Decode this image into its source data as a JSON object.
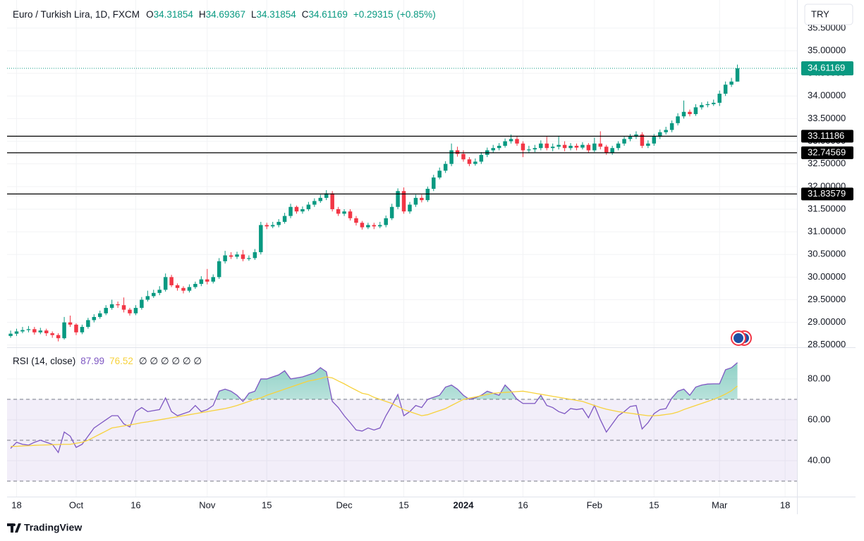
{
  "legend": {
    "title": "Euro / Turkish Lira, 1D, FXCM",
    "labels": [
      "O",
      "H",
      "L",
      "C"
    ],
    "change": "+0.29315",
    "change_pct": "(+0.85%)"
  },
  "currency": "TRY",
  "brand": "TradingView",
  "chart_data": [
    {
      "type": "candlestick",
      "up_color": "#089981",
      "down_color": "#f23645",
      "grid": true,
      "xlim": [
        -0.6,
        132
      ],
      "xticks": [
        {
          "value": 1,
          "label": "18"
        },
        {
          "value": 11,
          "label": "Oct"
        },
        {
          "value": 21,
          "label": "16"
        },
        {
          "value": 33,
          "label": "Nov"
        },
        {
          "value": 43,
          "label": "15"
        },
        {
          "value": 56,
          "label": "Dec"
        },
        {
          "value": 66,
          "label": "15"
        },
        {
          "value": 76,
          "label": "2024"
        },
        {
          "value": 86,
          "label": "16"
        },
        {
          "value": 98,
          "label": "Feb"
        },
        {
          "value": 108,
          "label": "15"
        },
        {
          "value": 119,
          "label": "Mar"
        },
        {
          "value": 130,
          "label": "18"
        }
      ],
      "ylim": [
        28.45,
        36.12
      ],
      "yticks": [
        {
          "value": 28.5,
          "label": "28.50000"
        },
        {
          "value": 29,
          "label": "29.00000"
        },
        {
          "value": 29.5,
          "label": "29.50000"
        },
        {
          "value": 30,
          "label": "30.00000"
        },
        {
          "value": 30.5,
          "label": "30.50000"
        },
        {
          "value": 31,
          "label": "31.00000"
        },
        {
          "value": 31.5,
          "label": "31.50000"
        },
        {
          "value": 32,
          "label": "32.00000"
        },
        {
          "value": 32.5,
          "label": "32.50000"
        },
        {
          "value": 33,
          "label": "33.00000"
        },
        {
          "value": 33.5,
          "label": "33.50000"
        },
        {
          "value": 34,
          "label": "34.00000"
        },
        {
          "value": 34.5,
          "label": "34.50000"
        },
        {
          "value": 35,
          "label": "35.00000"
        },
        {
          "value": 35.5,
          "label": "35.50000"
        }
      ],
      "hlines": [
        33.11186,
        32.74569,
        31.83579
      ],
      "open": [
        28.7,
        28.75,
        28.8,
        28.83,
        28.85,
        28.78,
        28.82,
        28.76,
        28.72,
        28.65,
        29.0,
        28.95,
        28.78,
        28.9,
        29.05,
        29.12,
        29.2,
        29.32,
        29.4,
        29.38,
        29.28,
        29.2,
        29.32,
        29.5,
        29.58,
        29.65,
        29.72,
        30.0,
        29.82,
        29.76,
        29.7,
        29.78,
        29.85,
        29.95,
        29.9,
        30.0,
        30.35,
        30.48,
        30.45,
        30.5,
        30.4,
        30.42,
        30.55,
        31.15,
        31.12,
        31.15,
        31.22,
        31.35,
        31.55,
        31.45,
        31.5,
        31.6,
        31.68,
        31.75,
        31.85,
        31.5,
        31.4,
        31.45,
        31.3,
        31.2,
        31.1,
        31.15,
        31.12,
        31.15,
        31.3,
        31.55,
        31.9,
        31.45,
        31.6,
        31.75,
        31.7,
        31.95,
        32.2,
        32.35,
        32.5,
        32.8,
        32.72,
        32.6,
        32.5,
        32.55,
        32.7,
        32.8,
        32.85,
        32.9,
        33.0,
        33.05,
        32.95,
        32.8,
        32.82,
        32.85,
        32.95,
        32.85,
        32.88,
        32.92,
        32.85,
        32.9,
        32.86,
        32.92,
        32.8,
        32.95,
        32.88,
        32.75,
        32.85,
        32.95,
        33.05,
        33.1,
        33.15,
        32.9,
        32.95,
        33.1,
        33.2,
        33.25,
        33.4,
        33.55,
        33.65,
        33.6,
        33.75,
        33.8,
        33.82,
        33.85,
        34.05,
        34.25,
        34.31854
      ],
      "high": [
        28.82,
        28.86,
        28.9,
        28.92,
        28.9,
        28.88,
        28.86,
        28.8,
        28.76,
        29.12,
        29.15,
        28.98,
        28.95,
        29.1,
        29.18,
        29.26,
        29.38,
        29.5,
        29.46,
        29.55,
        29.32,
        29.38,
        29.56,
        29.7,
        29.72,
        29.8,
        30.08,
        30.05,
        29.86,
        29.8,
        29.84,
        29.9,
        30.02,
        30.18,
        30.06,
        30.42,
        30.58,
        30.55,
        30.56,
        30.6,
        30.48,
        30.62,
        31.22,
        31.2,
        31.22,
        31.28,
        31.42,
        31.62,
        31.58,
        31.56,
        31.66,
        31.74,
        31.82,
        31.92,
        31.9,
        31.55,
        31.5,
        31.5,
        31.35,
        31.24,
        31.2,
        31.2,
        31.22,
        31.36,
        31.62,
        31.96,
        31.98,
        31.66,
        31.82,
        31.82,
        32.0,
        32.26,
        32.42,
        32.56,
        32.95,
        32.88,
        32.8,
        32.65,
        32.62,
        32.76,
        32.86,
        32.92,
        32.96,
        33.06,
        33.15,
        33.12,
        33.0,
        32.9,
        32.92,
        33.02,
        33.1,
        32.95,
        33.12,
        33.0,
        32.96,
        32.95,
        32.98,
        32.96,
        33.08,
        33.22,
        32.92,
        32.9,
        33.0,
        33.1,
        33.16,
        33.22,
        33.2,
        33.02,
        33.16,
        33.26,
        33.32,
        33.46,
        33.62,
        33.9,
        33.7,
        33.82,
        33.86,
        33.88,
        33.92,
        34.12,
        34.32,
        34.4,
        34.69367
      ],
      "low": [
        28.66,
        28.7,
        28.76,
        28.78,
        28.73,
        28.74,
        28.7,
        28.66,
        28.58,
        28.62,
        28.9,
        28.72,
        28.74,
        28.86,
        29.0,
        29.08,
        29.16,
        29.28,
        29.32,
        29.22,
        29.15,
        29.16,
        29.28,
        29.46,
        29.54,
        29.6,
        29.68,
        29.78,
        29.7,
        29.64,
        29.66,
        29.74,
        29.8,
        29.84,
        29.86,
        29.96,
        30.3,
        30.4,
        30.4,
        30.35,
        30.36,
        30.38,
        30.5,
        31.06,
        31.08,
        31.1,
        31.18,
        31.3,
        31.4,
        31.4,
        31.46,
        31.55,
        31.64,
        31.7,
        31.45,
        31.35,
        31.35,
        31.25,
        31.14,
        31.05,
        31.06,
        31.06,
        31.08,
        31.1,
        31.26,
        31.5,
        31.4,
        31.4,
        31.55,
        31.65,
        31.66,
        31.9,
        32.16,
        32.3,
        32.45,
        32.66,
        32.55,
        32.45,
        32.46,
        32.5,
        32.65,
        32.75,
        32.8,
        32.86,
        32.95,
        32.9,
        32.65,
        32.74,
        32.76,
        32.8,
        32.8,
        32.78,
        32.82,
        32.78,
        32.8,
        32.8,
        32.82,
        32.75,
        32.76,
        32.82,
        32.7,
        32.7,
        32.8,
        32.9,
        33.0,
        33.05,
        32.85,
        32.85,
        32.9,
        33.05,
        33.15,
        33.2,
        33.35,
        33.5,
        33.55,
        33.56,
        33.7,
        33.75,
        33.78,
        33.78,
        34.0,
        34.2,
        34.31854
      ],
      "close": [
        28.75,
        28.8,
        28.83,
        28.85,
        28.78,
        28.82,
        28.76,
        28.72,
        28.65,
        29.0,
        28.95,
        28.78,
        28.9,
        29.05,
        29.12,
        29.2,
        29.32,
        29.4,
        29.38,
        29.28,
        29.2,
        29.32,
        29.5,
        29.58,
        29.65,
        29.72,
        30.0,
        29.82,
        29.76,
        29.7,
        29.78,
        29.85,
        29.95,
        29.9,
        30.0,
        30.35,
        30.48,
        30.45,
        30.5,
        30.4,
        30.42,
        30.55,
        31.15,
        31.12,
        31.15,
        31.22,
        31.35,
        31.55,
        31.45,
        31.5,
        31.6,
        31.68,
        31.75,
        31.85,
        31.5,
        31.4,
        31.45,
        31.3,
        31.2,
        31.1,
        31.15,
        31.12,
        31.15,
        31.3,
        31.55,
        31.9,
        31.45,
        31.6,
        31.75,
        31.7,
        31.95,
        32.2,
        32.35,
        32.5,
        32.8,
        32.72,
        32.6,
        32.5,
        32.55,
        32.7,
        32.8,
        32.85,
        32.9,
        33.0,
        33.05,
        32.95,
        32.8,
        32.82,
        32.85,
        32.95,
        32.85,
        32.88,
        32.92,
        32.85,
        32.9,
        32.86,
        32.92,
        32.8,
        32.95,
        32.88,
        32.75,
        32.85,
        32.95,
        33.05,
        33.1,
        33.15,
        32.9,
        32.95,
        33.1,
        33.2,
        33.25,
        33.4,
        33.55,
        33.65,
        33.6,
        33.75,
        33.8,
        33.82,
        33.85,
        34.05,
        34.25,
        34.31854,
        34.61169
      ]
    },
    {
      "type": "line",
      "title": "RSI (14, close)",
      "legend_marks": "∅ ∅ ∅ ∅ ∅ ∅",
      "ylim": [
        22.4,
        94.8
      ],
      "yticks": [
        {
          "value": 80,
          "label": "80.00"
        },
        {
          "value": 60,
          "label": "60.00"
        },
        {
          "value": 40,
          "label": "40.00"
        }
      ],
      "levels": [
        70,
        50,
        30
      ],
      "band_color": "#7e57c2",
      "fill_color": "#089981",
      "series": [
        {
          "color": "#7e57c2",
          "values": [
            46,
            49,
            48,
            47.6,
            49,
            50,
            49,
            48,
            44,
            54,
            52,
            46.5,
            48,
            52,
            56,
            58,
            60,
            62,
            62,
            58,
            56.5,
            64,
            66,
            64,
            64.5,
            65,
            70.7,
            64,
            62,
            63,
            64,
            67,
            64,
            65,
            67,
            74,
            75,
            74,
            72,
            69,
            73,
            74,
            80,
            80,
            81,
            82,
            84,
            80,
            80.5,
            81,
            82,
            83,
            85.5,
            83.5,
            69,
            66,
            62,
            58.6,
            55,
            54.5,
            56,
            55,
            56,
            62,
            67,
            72.4,
            62,
            64,
            67,
            66,
            70,
            71,
            72,
            76,
            77,
            75,
            72,
            70,
            70.7,
            72,
            74,
            73,
            72,
            77,
            74,
            70,
            68,
            68,
            68,
            72,
            67,
            66,
            64,
            63,
            65.5,
            65,
            65.5,
            61,
            67,
            60,
            54,
            58,
            62,
            64,
            66.5,
            67,
            55.5,
            58.6,
            63,
            65,
            65.5,
            70.7,
            74,
            75,
            72,
            76,
            77,
            77.5,
            77.6,
            77.6,
            84.5,
            85.5,
            87.99
          ]
        },
        {
          "color": "#f7d23c",
          "values": [
            47,
            47,
            47.2,
            47.3,
            47.5,
            47.6,
            47.7,
            47.8,
            47.9,
            48,
            48,
            48.5,
            49,
            50,
            51.5,
            53,
            54.5,
            56,
            56.5,
            57,
            57.5,
            58,
            58.6,
            59,
            59.5,
            60,
            60.5,
            61,
            61.5,
            62,
            62.5,
            63,
            63.5,
            64,
            64.5,
            65,
            65.5,
            66.2,
            67,
            68,
            69,
            70,
            70.7,
            72,
            73,
            74,
            75,
            76,
            77,
            78,
            79,
            79.5,
            80.2,
            81,
            80.5,
            79,
            77.6,
            76,
            74.5,
            73,
            72.4,
            71,
            70,
            69,
            68,
            66.5,
            65,
            64,
            63,
            62,
            62.5,
            63.5,
            64.5,
            65.5,
            67,
            68.5,
            70,
            70.6,
            71.2,
            71.8,
            72.4,
            73,
            73.2,
            73.4,
            73.6,
            73.8,
            74,
            73.5,
            73,
            72.5,
            72,
            71.5,
            71,
            70.5,
            70,
            69.5,
            69,
            68,
            67,
            66,
            65.2,
            64.6,
            64,
            63.6,
            63.2,
            62.8,
            62.4,
            62,
            62,
            62.2,
            62.6,
            63,
            63.8,
            65,
            66,
            67,
            68,
            69,
            70,
            71.2,
            72.6,
            74.2,
            76.52
          ]
        }
      ]
    }
  ]
}
